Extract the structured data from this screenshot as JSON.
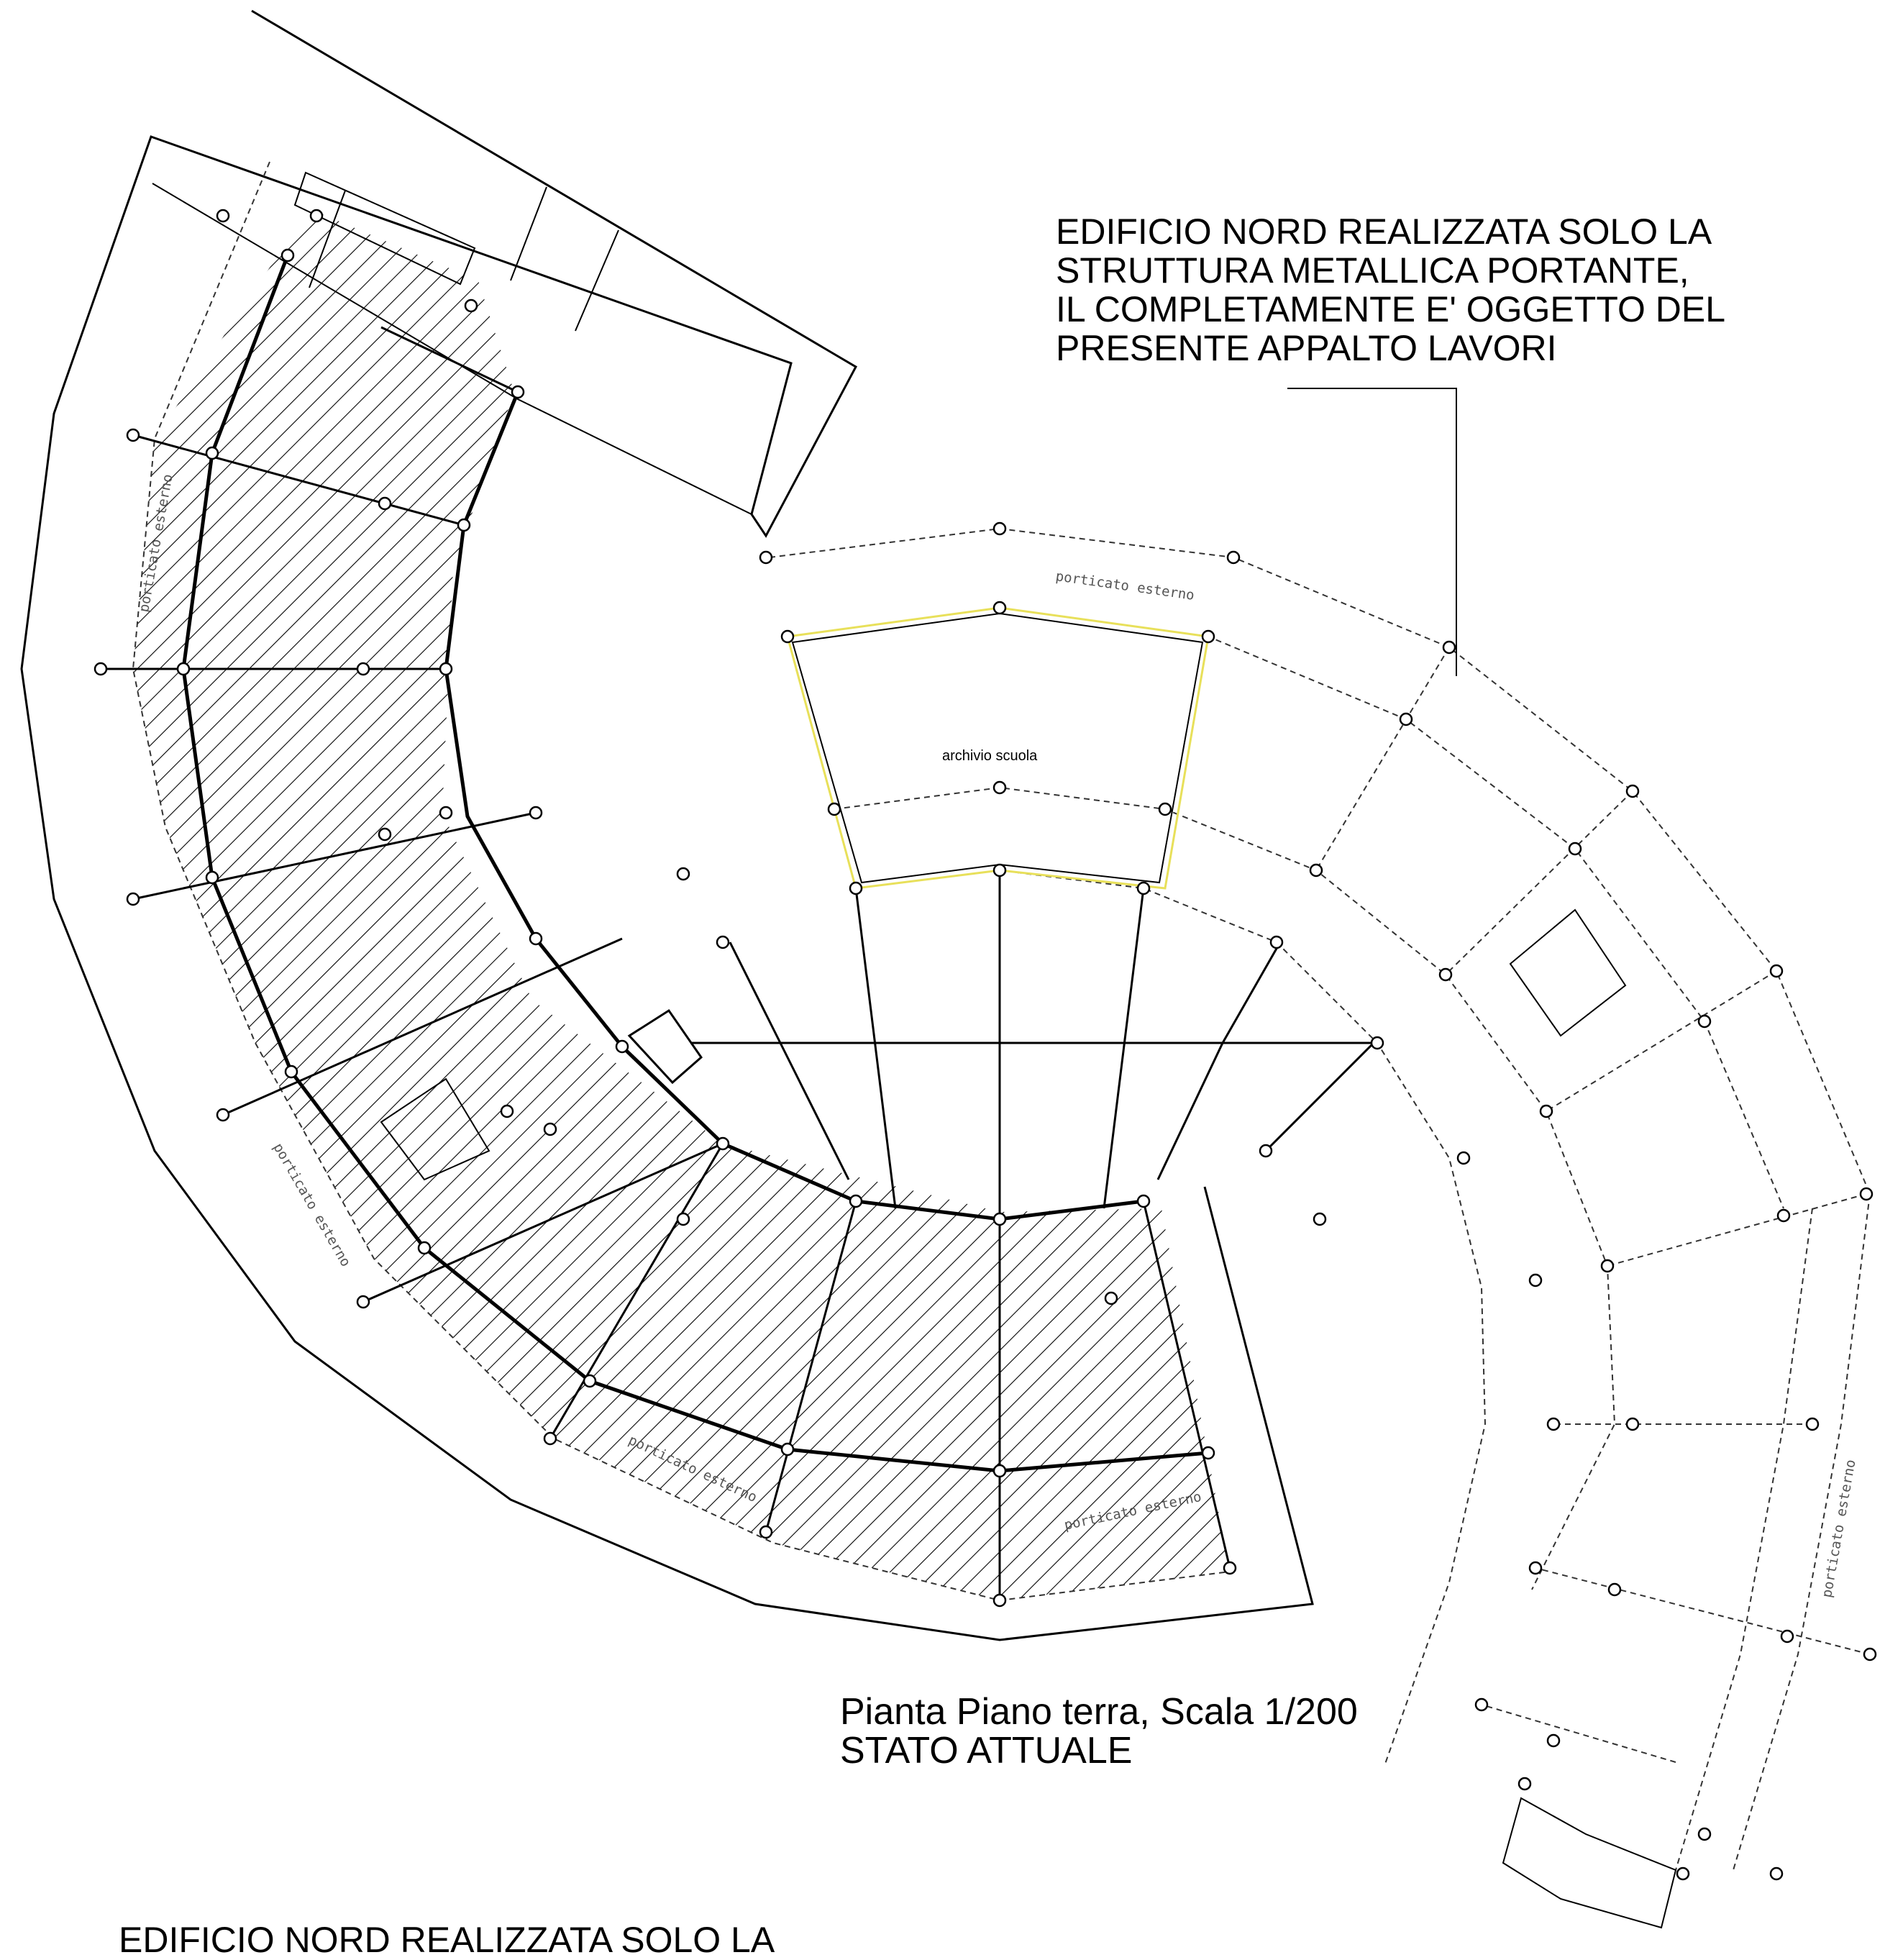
{
  "notes": {
    "top_lines": [
      "EDIFICIO NORD REALIZZATA SOLO LA",
      "STRUTTURA METALLICA PORTANTE,",
      "IL COMPLETAMENTE E' OGGETTO DEL",
      "PRESENTE APPALTO LAVORI"
    ],
    "bottom_partial": "EDIFICIO NORD REALIZZATA SOLO LA"
  },
  "plan_title": {
    "line1": "Pianta Piano terra, Scala 1/200",
    "line2": "STATO ATTUALE"
  },
  "rooms": {
    "archive": "archivio scuola"
  },
  "porch_label": "porticato esterno",
  "colors": {
    "line": "#000000",
    "dashed": "#555555",
    "highlight": "#e8e05a"
  }
}
